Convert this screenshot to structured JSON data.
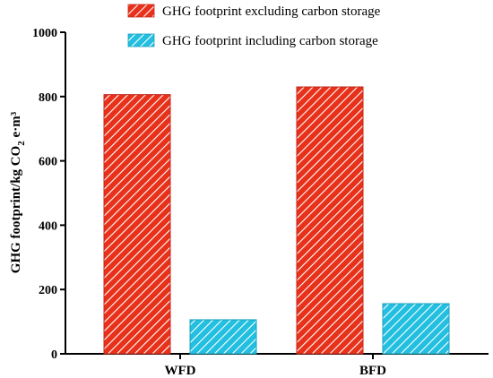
{
  "chart_data": {
    "type": "bar",
    "categories": [
      "WFD",
      "BFD"
    ],
    "series": [
      {
        "name": "GHG footprint excluding carbon storage",
        "values": [
          806,
          830
        ],
        "color": "#e8311a",
        "pattern": "diagonal-hatch"
      },
      {
        "name": "GHG footprint including  carbon storage",
        "values": [
          106,
          156
        ],
        "color": "#22bfe0",
        "pattern": "diagonal-hatch"
      }
    ],
    "ylabel": {
      "prefix": "GHG footprint/kg CO",
      "subscript": "2",
      "suffix": " e·m³"
    },
    "ylim": [
      0,
      1000
    ],
    "yticks": [
      "0",
      "200",
      "400",
      "600",
      "800",
      "1000"
    ],
    "legend_position": "top",
    "grid": false
  }
}
